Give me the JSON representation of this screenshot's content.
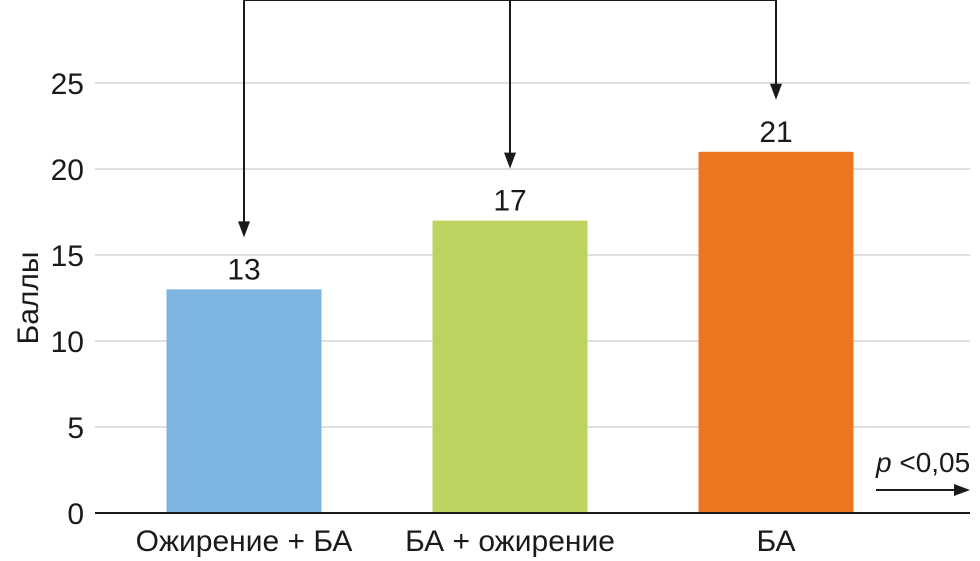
{
  "chart_data": {
    "type": "bar",
    "categories": [
      "Ожирение + БА",
      "БА + ожирение",
      "БА"
    ],
    "values": [
      13,
      17,
      21
    ],
    "data_labels": [
      "13",
      "17",
      "21"
    ],
    "colors": [
      "#7eb4e2",
      "#bcd35f",
      "#ec7520"
    ],
    "ylabel": "Баллы",
    "xlabel": "",
    "ylim": [
      0,
      28
    ],
    "yticks": [
      0,
      5,
      10,
      15,
      20,
      25
    ],
    "grid": true,
    "annotation": {
      "p_symbol": "p",
      "p_text": " <0,05"
    }
  }
}
